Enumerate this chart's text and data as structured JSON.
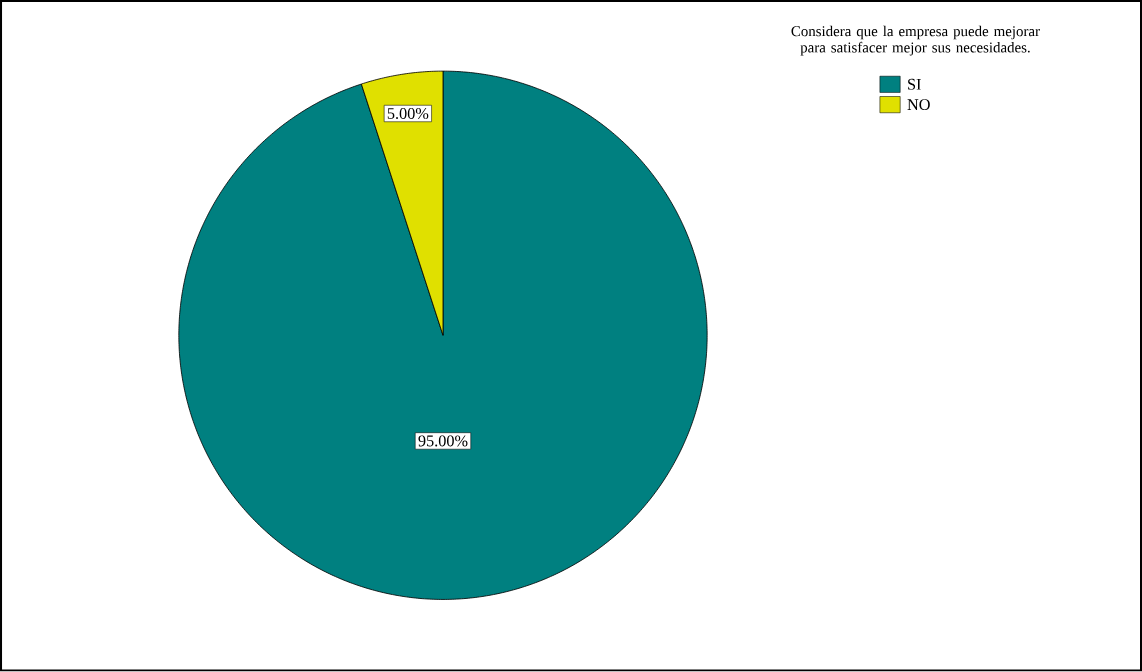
{
  "chart_data": {
    "type": "pie",
    "legend_title": "Considera que la empresa puede mejorar para satisfacer mejor sus necesidades.",
    "categories": [
      "SI",
      "NO"
    ],
    "values": [
      95,
      5
    ],
    "colors": [
      "#008080",
      "#e0e000"
    ],
    "value_labels": [
      "95.00%",
      "5.00%"
    ],
    "legend": "top right"
  }
}
